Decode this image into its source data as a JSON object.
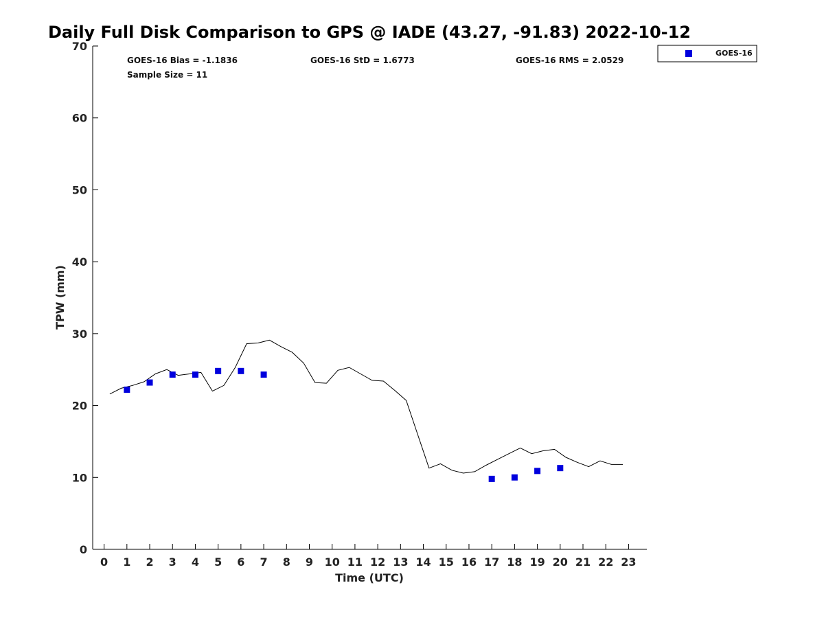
{
  "chart_data": {
    "type": "scatter",
    "title": "Daily Full Disk Comparison to GPS @ IADE (43.27, -91.83) 2022-10-12",
    "xlabel": "Time (UTC)",
    "ylabel": "TPW (mm)",
    "xlim": [
      -0.5,
      23.8
    ],
    "ylim": [
      0,
      70
    ],
    "x_ticks": [
      "0",
      "1",
      "2",
      "3",
      "4",
      "5",
      "6",
      "7",
      "8",
      "9",
      "10",
      "11",
      "12",
      "13",
      "14",
      "15",
      "16",
      "17",
      "18",
      "19",
      "20",
      "21",
      "22",
      "23"
    ],
    "y_ticks": [
      "0",
      "10",
      "20",
      "30",
      "40",
      "50",
      "60",
      "70"
    ],
    "grid": false,
    "legend_position": "top-right",
    "stats": {
      "bias": "GOES-16 Bias = -1.1836",
      "std": "GOES-16 StD = 1.6773",
      "rms": "GOES-16 RMS = 2.0529",
      "sample_size": "Sample Size = 11"
    },
    "series": [
      {
        "name": "GOES-16",
        "kind": "scatter",
        "color": "#0000dd",
        "x": [
          1,
          2,
          3,
          4,
          5,
          6,
          7,
          17,
          18,
          19,
          20
        ],
        "y": [
          22.2,
          23.2,
          24.3,
          24.3,
          24.8,
          24.8,
          24.3,
          9.8,
          10.0,
          10.9,
          11.3
        ]
      },
      {
        "kind": "line",
        "color": "#000000",
        "x": [
          0.25,
          0.75,
          1.25,
          1.75,
          2.25,
          2.75,
          3.25,
          3.75,
          4.25,
          4.75,
          5.25,
          5.75,
          6.25,
          6.75,
          7.25,
          7.75,
          8.25,
          8.75,
          9.25,
          9.75,
          10.25,
          10.75,
          11.25,
          11.75,
          12.25,
          12.75,
          13.25,
          13.75,
          14.25,
          14.75,
          15.25,
          15.75,
          16.25,
          16.75,
          17.25,
          17.75,
          18.25,
          18.75,
          19.25,
          19.75,
          20.25,
          20.75,
          21.25,
          21.75,
          22.25,
          22.75
        ],
        "y": [
          21.6,
          22.4,
          22.8,
          23.3,
          24.4,
          25.0,
          24.2,
          24.4,
          24.6,
          22.0,
          22.8,
          25.3,
          28.6,
          28.7,
          29.1,
          28.2,
          27.4,
          25.9,
          23.2,
          23.1,
          24.9,
          25.3,
          24.4,
          23.5,
          23.4,
          22.1,
          20.7,
          16.0,
          11.3,
          11.9,
          11.0,
          10.6,
          10.8,
          11.7,
          12.5,
          13.3,
          14.1,
          13.3,
          13.7,
          13.9,
          12.8,
          12.1,
          11.5,
          12.3,
          11.8,
          11.8
        ]
      }
    ]
  }
}
